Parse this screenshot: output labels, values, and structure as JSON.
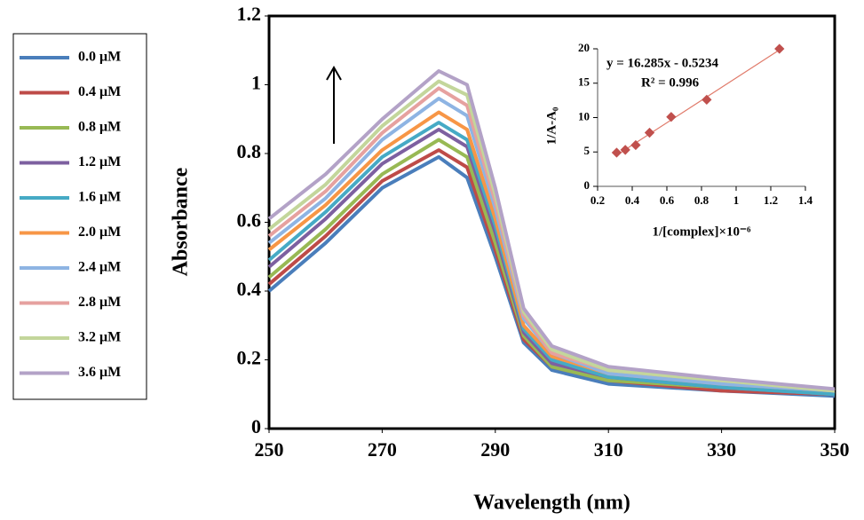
{
  "chart_data": [
    {
      "type": "line",
      "xlabel": "Wavelength (nm)",
      "ylabel": "Absorbance",
      "x": [
        250,
        260,
        270,
        280,
        285,
        290,
        295,
        300,
        310,
        330,
        350
      ],
      "xlim": [
        250,
        350
      ],
      "xticks": [
        250,
        270,
        290,
        310,
        330,
        350
      ],
      "ylim": [
        0,
        1.2
      ],
      "yticks": [
        0,
        0.2,
        0.4,
        0.6,
        0.8,
        1,
        1.2
      ],
      "legend": "outside-left",
      "series": [
        {
          "name": "0.0 μM",
          "color": "#4a7ebb",
          "values": [
            0.4,
            0.54,
            0.7,
            0.79,
            0.73,
            0.5,
            0.25,
            0.17,
            0.13,
            0.11,
            0.095
          ]
        },
        {
          "name": "0.4 μM",
          "color": "#be4b48",
          "values": [
            0.42,
            0.56,
            0.72,
            0.81,
            0.76,
            0.52,
            0.26,
            0.18,
            0.14,
            0.11,
            0.1
          ]
        },
        {
          "name": "0.8 μM",
          "color": "#98b954",
          "values": [
            0.44,
            0.58,
            0.74,
            0.84,
            0.79,
            0.54,
            0.27,
            0.18,
            0.14,
            0.12,
            0.1
          ]
        },
        {
          "name": "1.2 μM",
          "color": "#7d60a0",
          "values": [
            0.47,
            0.61,
            0.77,
            0.87,
            0.82,
            0.57,
            0.28,
            0.19,
            0.15,
            0.12,
            0.1
          ]
        },
        {
          "name": "1.6 μM",
          "color": "#46aac5",
          "values": [
            0.49,
            0.63,
            0.79,
            0.89,
            0.84,
            0.59,
            0.29,
            0.2,
            0.15,
            0.12,
            0.1
          ]
        },
        {
          "name": "2.0 μM",
          "color": "#f79646",
          "values": [
            0.52,
            0.65,
            0.81,
            0.92,
            0.87,
            0.61,
            0.3,
            0.21,
            0.16,
            0.13,
            0.11
          ]
        },
        {
          "name": "2.4 μM",
          "color": "#8eb4e3",
          "values": [
            0.54,
            0.67,
            0.84,
            0.96,
            0.91,
            0.64,
            0.32,
            0.22,
            0.16,
            0.13,
            0.11
          ]
        },
        {
          "name": "2.8 μM",
          "color": "#e6a19f",
          "values": [
            0.56,
            0.69,
            0.86,
            0.99,
            0.94,
            0.66,
            0.33,
            0.22,
            0.17,
            0.14,
            0.11
          ]
        },
        {
          "name": "3.2 μM",
          "color": "#c3d69b",
          "values": [
            0.58,
            0.71,
            0.88,
            1.01,
            0.97,
            0.68,
            0.34,
            0.23,
            0.17,
            0.14,
            0.11
          ]
        },
        {
          "name": "3.6 μM",
          "color": "#b3a2c7",
          "values": [
            0.61,
            0.74,
            0.9,
            1.04,
            1.0,
            0.7,
            0.35,
            0.24,
            0.18,
            0.145,
            0.115
          ]
        }
      ]
    },
    {
      "type": "scatter",
      "xlabel": "1/[complex]×10⁻⁶",
      "ylabel": "1/A-A₀",
      "x": [
        0.31,
        0.36,
        0.42,
        0.5,
        0.625,
        0.83,
        1.25
      ],
      "values": [
        4.9,
        5.3,
        6.0,
        7.8,
        10.1,
        12.6,
        20.0
      ],
      "color": "#c0504d",
      "xlim": [
        0.2,
        1.4
      ],
      "xticks": [
        0.2,
        0.4,
        0.6,
        0.8,
        1,
        1.2,
        1.4
      ],
      "ylim": [
        0,
        20
      ],
      "yticks": [
        0,
        5,
        10,
        15,
        20
      ],
      "annotations": [
        "y = 16.285x - 0.5234",
        "R² = 0.996"
      ],
      "trendline": {
        "slope": 16.285,
        "intercept": -0.5234,
        "color": "#e07a6a"
      }
    }
  ]
}
